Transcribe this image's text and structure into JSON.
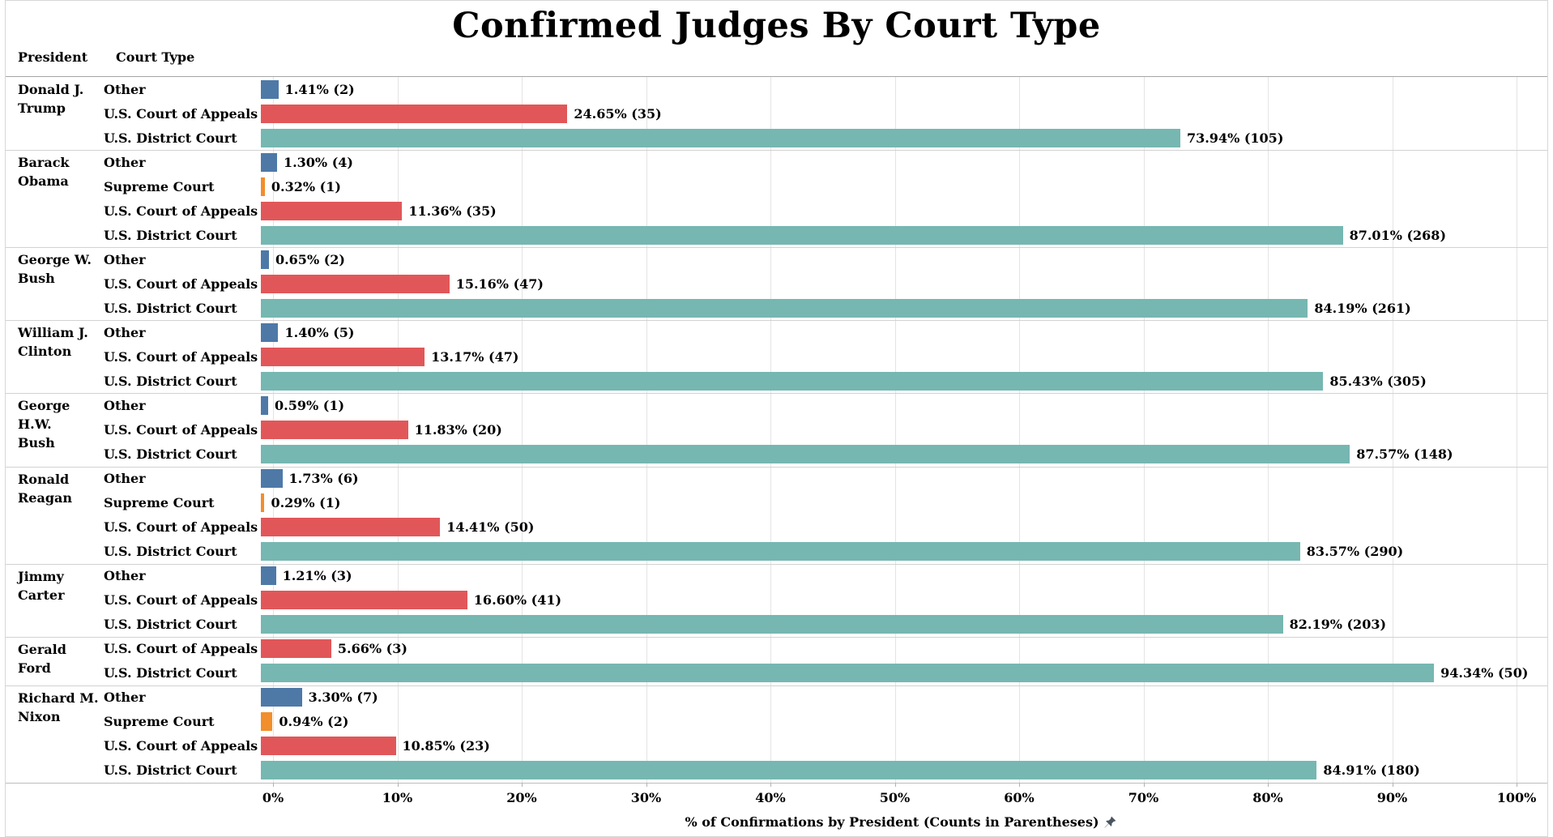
{
  "title": "Confirmed Judges By Court Type",
  "column_headers": {
    "president": "President",
    "court_type": "Court Type"
  },
  "axis": {
    "tick_labels": [
      "0%",
      "10%",
      "20%",
      "30%",
      "40%",
      "50%",
      "60%",
      "70%",
      "80%",
      "90%",
      "100%"
    ],
    "title": "% of Confirmations by President (Counts in Parentheses)",
    "pin_icon": "pushpin-icon"
  },
  "colors": {
    "Other": "#4e79a7",
    "Supreme Court": "#f28e2b",
    "U.S. Court of Appeals": "#e15759",
    "U.S. District Court": "#76b7b2",
    "gridline": "#e4e4e4",
    "separator": "#d2d2d2"
  },
  "chart_data": {
    "type": "bar",
    "orientation": "horizontal",
    "xlabel": "% of Confirmations by President (Counts in Parentheses)",
    "xlim": [
      0,
      100
    ],
    "grid": true,
    "groups": [
      {
        "president": "Donald J.\nTrump",
        "rows": [
          {
            "court": "Other",
            "pct": 1.41,
            "count": 2,
            "label": "1.41% (2)"
          },
          {
            "court": "U.S. Court of Appeals",
            "pct": 24.65,
            "count": 35,
            "label": "24.65% (35)"
          },
          {
            "court": "U.S. District Court",
            "pct": 73.94,
            "count": 105,
            "label": "73.94% (105)"
          }
        ]
      },
      {
        "president": "Barack\nObama",
        "rows": [
          {
            "court": "Other",
            "pct": 1.3,
            "count": 4,
            "label": "1.30% (4)"
          },
          {
            "court": "Supreme Court",
            "pct": 0.32,
            "count": 1,
            "label": "0.32% (1)"
          },
          {
            "court": "U.S. Court of Appeals",
            "pct": 11.36,
            "count": 35,
            "label": "11.36% (35)"
          },
          {
            "court": "U.S. District Court",
            "pct": 87.01,
            "count": 268,
            "label": "87.01% (268)"
          }
        ]
      },
      {
        "president": "George W.\nBush",
        "rows": [
          {
            "court": "Other",
            "pct": 0.65,
            "count": 2,
            "label": "0.65% (2)"
          },
          {
            "court": "U.S. Court of Appeals",
            "pct": 15.16,
            "count": 47,
            "label": "15.16% (47)"
          },
          {
            "court": "U.S. District Court",
            "pct": 84.19,
            "count": 261,
            "label": "84.19% (261)"
          }
        ]
      },
      {
        "president": "William J.\nClinton",
        "rows": [
          {
            "court": "Other",
            "pct": 1.4,
            "count": 5,
            "label": "1.40% (5)"
          },
          {
            "court": "U.S. Court of Appeals",
            "pct": 13.17,
            "count": 47,
            "label": "13.17% (47)"
          },
          {
            "court": "U.S. District Court",
            "pct": 85.43,
            "count": 305,
            "label": "85.43% (305)"
          }
        ]
      },
      {
        "president": "George H.W.\nBush",
        "rows": [
          {
            "court": "Other",
            "pct": 0.59,
            "count": 1,
            "label": "0.59% (1)"
          },
          {
            "court": "U.S. Court of Appeals",
            "pct": 11.83,
            "count": 20,
            "label": "11.83% (20)"
          },
          {
            "court": "U.S. District Court",
            "pct": 87.57,
            "count": 148,
            "label": "87.57% (148)"
          }
        ]
      },
      {
        "president": "Ronald\nReagan",
        "rows": [
          {
            "court": "Other",
            "pct": 1.73,
            "count": 6,
            "label": "1.73% (6)"
          },
          {
            "court": "Supreme Court",
            "pct": 0.29,
            "count": 1,
            "label": "0.29% (1)"
          },
          {
            "court": "U.S. Court of Appeals",
            "pct": 14.41,
            "count": 50,
            "label": "14.41% (50)"
          },
          {
            "court": "U.S. District Court",
            "pct": 83.57,
            "count": 290,
            "label": "83.57% (290)"
          }
        ]
      },
      {
        "president": "Jimmy Carter",
        "rows": [
          {
            "court": "Other",
            "pct": 1.21,
            "count": 3,
            "label": "1.21% (3)"
          },
          {
            "court": "U.S. Court of Appeals",
            "pct": 16.6,
            "count": 41,
            "label": "16.60% (41)"
          },
          {
            "court": "U.S. District Court",
            "pct": 82.19,
            "count": 203,
            "label": "82.19% (203)"
          }
        ]
      },
      {
        "president": "Gerald Ford",
        "rows": [
          {
            "court": "U.S. Court of Appeals",
            "pct": 5.66,
            "count": 3,
            "label": "5.66% (3)"
          },
          {
            "court": "U.S. District Court",
            "pct": 94.34,
            "count": 50,
            "label": "94.34% (50)"
          }
        ]
      },
      {
        "president": "Richard M.\nNixon",
        "rows": [
          {
            "court": "Other",
            "pct": 3.3,
            "count": 7,
            "label": "3.30% (7)"
          },
          {
            "court": "Supreme Court",
            "pct": 0.94,
            "count": 2,
            "label": "0.94% (2)"
          },
          {
            "court": "U.S. Court of Appeals",
            "pct": 10.85,
            "count": 23,
            "label": "10.85% (23)"
          },
          {
            "court": "U.S. District Court",
            "pct": 84.91,
            "count": 180,
            "label": "84.91% (180)"
          }
        ]
      }
    ]
  }
}
